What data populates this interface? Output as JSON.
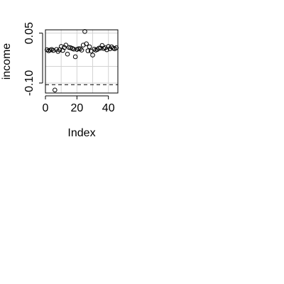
{
  "chart_data": {
    "type": "scatter",
    "title": "",
    "xlabel": "Index",
    "ylabel": "income",
    "xlim": [
      0,
      46
    ],
    "ylim": [
      -0.13,
      0.06
    ],
    "x_ticks": [
      0,
      20,
      40
    ],
    "x_tick_labels": [
      "0",
      "20",
      "40"
    ],
    "y_ticks": [
      -0.1,
      0.05
    ],
    "y_tick_labels": [
      "-0.10",
      "0.05"
    ],
    "grid": true,
    "grid_color": "#d3d3d3",
    "reference_line": {
      "y": -0.105,
      "style": "dashed"
    },
    "series": [
      {
        "marker": "open-circle",
        "x": [
          1,
          2,
          3,
          4,
          5,
          6,
          7,
          8,
          9,
          10,
          11,
          12,
          13,
          14,
          15,
          16,
          17,
          18,
          19,
          20,
          21,
          22,
          23,
          24,
          25,
          26,
          27,
          28,
          29,
          30,
          31,
          32,
          33,
          34,
          35,
          36,
          37,
          38,
          39,
          40,
          41,
          42,
          43,
          44,
          45
        ],
        "y": [
          0.0,
          -0.003,
          -0.001,
          0.001,
          -0.002,
          -0.121,
          0.001,
          -0.005,
          0.0,
          0.01,
          -0.002,
          0.007,
          0.014,
          -0.013,
          0.007,
          0.006,
          0.004,
          0.002,
          -0.021,
          0.001,
          0.003,
          0.003,
          -0.001,
          0.014,
          0.055,
          0.018,
          -0.003,
          0.009,
          -0.004,
          -0.016,
          0.002,
          -0.001,
          0.001,
          0.005,
          0.005,
          0.013,
          0.004,
          0.006,
          0.0,
          0.01,
          0.003,
          0.009,
          0.005,
          0.003,
          0.006
        ]
      }
    ]
  }
}
